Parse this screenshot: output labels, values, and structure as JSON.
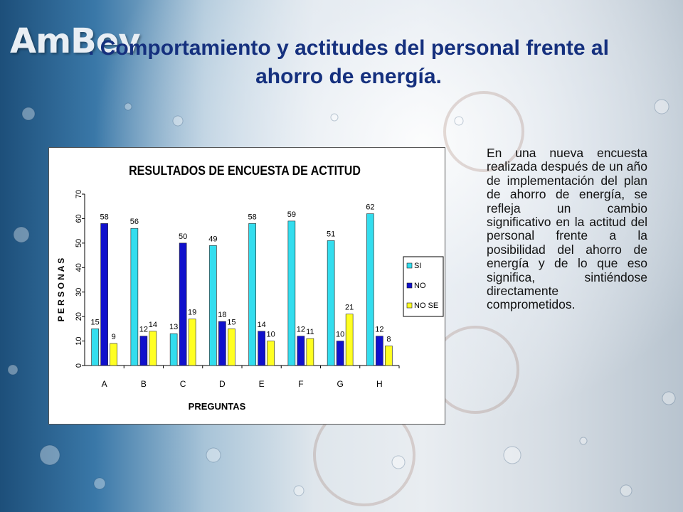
{
  "logo": {
    "text": "AmBev"
  },
  "slide": {
    "title": ". Comportamiento y actitudes del personal frente al ahorro de energía.",
    "body": "En una nueva encuesta realizada después de un año de implementación del plan de ahorro de energía, se refleja un cambio significativo en la actitud del personal frente a la posibilidad del ahorro de energía y de lo que eso significa, sintiéndose directamente comprometidos."
  },
  "chart_data": {
    "type": "bar",
    "title": "RESULTADOS DE ENCUESTA DE ACTITUD",
    "xlabel": "PREGUNTAS",
    "ylabel": "P E R S O N A S",
    "ylim": [
      0,
      70
    ],
    "yticks": [
      0,
      10,
      20,
      30,
      40,
      50,
      60,
      70
    ],
    "categories": [
      "A",
      "B",
      "C",
      "D",
      "E",
      "F",
      "G",
      "H"
    ],
    "series": [
      {
        "name": "SI",
        "color": "#33ddee",
        "values": [
          15,
          56,
          13,
          49,
          58,
          59,
          51,
          62
        ]
      },
      {
        "name": "NO",
        "color": "#1010cc",
        "values": [
          58,
          12,
          50,
          18,
          14,
          12,
          10,
          12
        ]
      },
      {
        "name": "NO SE",
        "color": "#ffff22",
        "values": [
          9,
          14,
          19,
          15,
          10,
          11,
          21,
          8
        ]
      }
    ],
    "legend": "right",
    "grid": false
  }
}
